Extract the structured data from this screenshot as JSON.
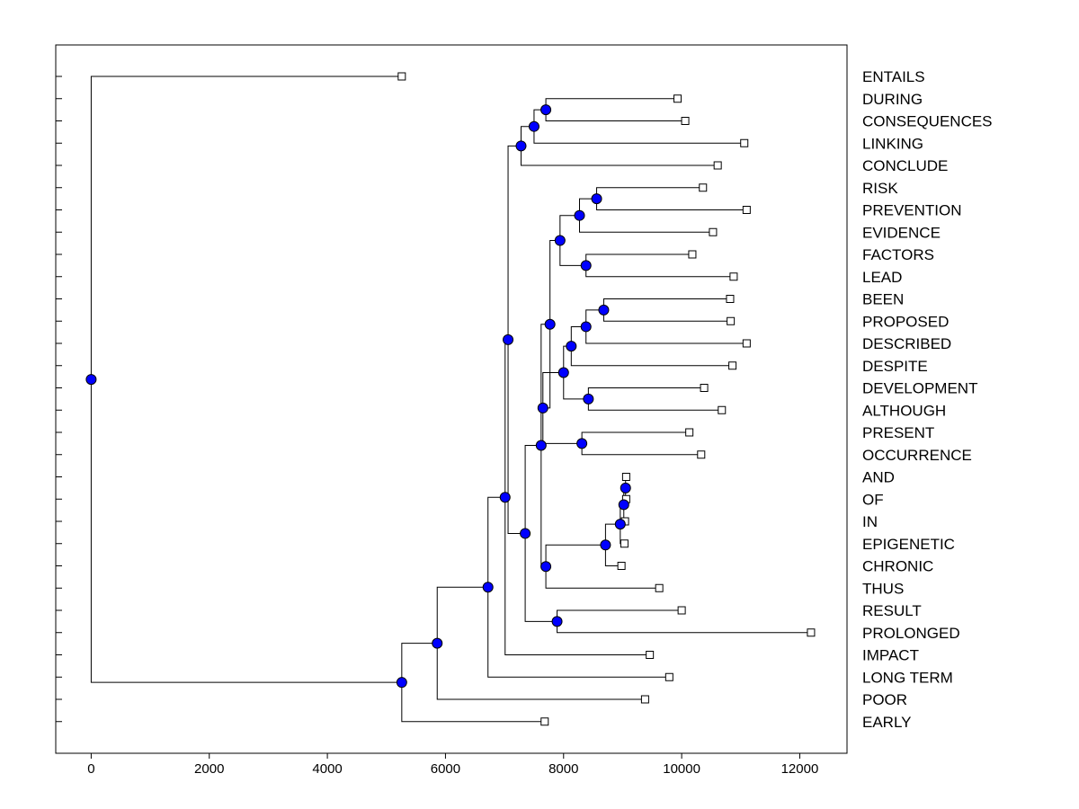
{
  "chart_data": {
    "type": "dendrogram",
    "title": "",
    "xlabel": "",
    "ylabel": "",
    "x_ticks": [
      0,
      2000,
      4000,
      6000,
      8000,
      10000,
      12000
    ],
    "xlim": [
      -600,
      12800
    ],
    "grid": false,
    "colors": {
      "node_fill": "#0000ff",
      "leaf_fill": "#ffffff",
      "line": "#000000"
    },
    "leaves": [
      {
        "label": "ENTAILS",
        "x": 5260
      },
      {
        "label": "DURING",
        "x": 9930
      },
      {
        "label": "CONSEQUENCES",
        "x": 10060
      },
      {
        "label": "LINKING",
        "x": 11060
      },
      {
        "label": "CONCLUDE",
        "x": 10610
      },
      {
        "label": "RISK",
        "x": 10360
      },
      {
        "label": "PREVENTION",
        "x": 11100
      },
      {
        "label": "EVIDENCE",
        "x": 10530
      },
      {
        "label": "FACTORS",
        "x": 10180
      },
      {
        "label": "LEAD",
        "x": 10880
      },
      {
        "label": "BEEN",
        "x": 10820
      },
      {
        "label": "PROPOSED",
        "x": 10830
      },
      {
        "label": "DESCRIBED",
        "x": 11100
      },
      {
        "label": "DESPITE",
        "x": 10860
      },
      {
        "label": "DEVELOPMENT",
        "x": 10380
      },
      {
        "label": "ALTHOUGH",
        "x": 10680
      },
      {
        "label": "PRESENT",
        "x": 10130
      },
      {
        "label": "OCCURRENCE",
        "x": 10330
      },
      {
        "label": "AND",
        "x": 9060
      },
      {
        "label": "OF",
        "x": 9060
      },
      {
        "label": "IN",
        "x": 9040
      },
      {
        "label": "EPIGENETIC",
        "x": 9030
      },
      {
        "label": "CHRONIC",
        "x": 8980
      },
      {
        "label": "THUS",
        "x": 9620
      },
      {
        "label": "RESULT",
        "x": 10000
      },
      {
        "label": "PROLONGED",
        "x": 12190
      },
      {
        "label": "IMPACT",
        "x": 9460
      },
      {
        "label": "LONG TERM",
        "x": 9790
      },
      {
        "label": "POOR",
        "x": 9380
      },
      {
        "label": "EARLY",
        "x": 7680
      }
    ],
    "nodes": [
      {
        "x": 9050,
        "children": [
          18,
          19
        ]
      },
      {
        "x": 9020,
        "children": [
          30,
          20
        ]
      },
      {
        "x": 8960,
        "children": [
          31,
          21
        ]
      },
      {
        "x": 8710,
        "children": [
          32,
          22
        ]
      },
      {
        "x": 7700,
        "children": [
          33,
          23
        ]
      },
      {
        "x": 8680,
        "children": [
          10,
          11
        ]
      },
      {
        "x": 8380,
        "children": [
          35,
          12
        ]
      },
      {
        "x": 8130,
        "children": [
          36,
          13
        ]
      },
      {
        "x": 8420,
        "children": [
          14,
          15
        ]
      },
      {
        "x": 8000,
        "children": [
          37,
          38
        ]
      },
      {
        "x": 8310,
        "children": [
          16,
          17
        ]
      },
      {
        "x": 7650,
        "children": [
          39,
          40
        ]
      },
      {
        "x": 8560,
        "children": [
          5,
          6
        ]
      },
      {
        "x": 8270,
        "children": [
          42,
          7
        ]
      },
      {
        "x": 8380,
        "children": [
          8,
          9
        ]
      },
      {
        "x": 7940,
        "children": [
          43,
          44
        ]
      },
      {
        "x": 7770,
        "children": [
          45,
          41
        ]
      },
      {
        "x": 7620,
        "children": [
          34,
          46
        ]
      },
      {
        "x": 7890,
        "children": [
          24,
          25
        ]
      },
      {
        "x": 7350,
        "children": [
          47,
          48
        ]
      },
      {
        "x": 7700,
        "children": [
          1,
          2
        ]
      },
      {
        "x": 7500,
        "children": [
          50,
          3
        ]
      },
      {
        "x": 7280,
        "children": [
          51,
          4
        ]
      },
      {
        "x": 7060,
        "children": [
          52,
          49
        ]
      },
      {
        "x": 7010,
        "children": [
          53,
          26
        ]
      },
      {
        "x": 6720,
        "children": [
          54,
          27
        ]
      },
      {
        "x": 5860,
        "children": [
          55,
          28
        ]
      },
      {
        "x": 5260,
        "children": [
          56,
          29
        ]
      },
      {
        "x": 0,
        "children": [
          0,
          57
        ]
      }
    ]
  }
}
